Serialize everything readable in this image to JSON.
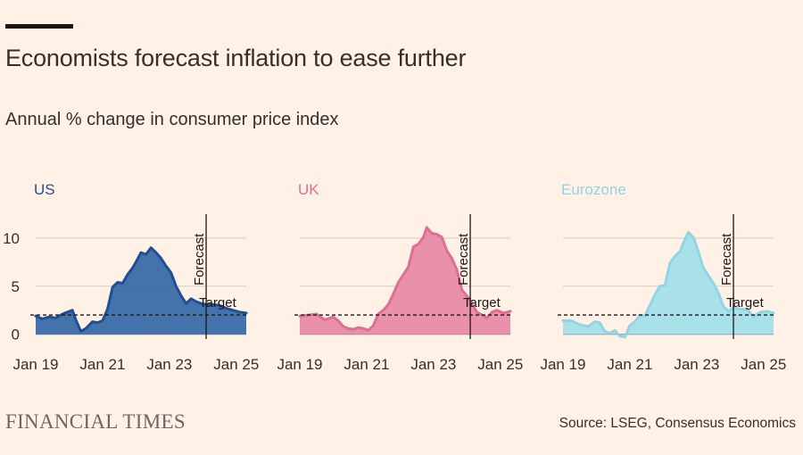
{
  "header": {
    "title": "Economists forecast inflation to ease further",
    "subtitle": "Annual % change in consumer price index"
  },
  "footer": {
    "brand": "FINANCIAL TIMES",
    "source": "Source: LSEG, Consensus Economics"
  },
  "colors": {
    "us": "#1f4f96",
    "uk": "#e06e94",
    "eurozone": "#8fd5e3"
  },
  "chart_data": [
    {
      "type": "area",
      "title": "US",
      "color": "#1f4f96",
      "fill": "#3a6aa8",
      "x_tick_labels": [
        "Jan 19",
        "Jan 21",
        "Jan 23",
        "Jan 25"
      ],
      "x_ticks": [
        2019,
        2021,
        2023,
        2025
      ],
      "xlim": [
        2019,
        2025.3
      ],
      "y_tick_labels": [
        "10",
        "5",
        "0"
      ],
      "y_ticks": [
        10,
        5,
        0
      ],
      "ylim": [
        -0.5,
        12.5
      ],
      "target": 2,
      "target_label": "Target",
      "forecast_start": 2024.1,
      "forecast_label": "Forecast",
      "series": [
        {
          "name": "US CPI",
          "x": [
            2019,
            2019.2,
            2019.4,
            2019.6,
            2019.8,
            2019.95,
            2020.1,
            2020.2,
            2020.35,
            2020.5,
            2020.7,
            2020.85,
            2021.0,
            2021.15,
            2021.3,
            2021.45,
            2021.6,
            2021.75,
            2021.9,
            2022.0,
            2022.15,
            2022.3,
            2022.45,
            2022.6,
            2022.75,
            2022.9,
            2023.05,
            2023.2,
            2023.35,
            2023.5,
            2023.65,
            2023.8,
            2023.95,
            2024.1,
            2024.3,
            2024.5,
            2024.7,
            2024.9,
            2025.1,
            2025.3
          ],
          "y": [
            1.9,
            1.6,
            1.8,
            1.7,
            2.1,
            2.3,
            2.5,
            1.5,
            0.3,
            0.6,
            1.3,
            1.2,
            1.4,
            2.6,
            4.9,
            5.4,
            5.3,
            6.2,
            6.9,
            7.5,
            8.5,
            8.3,
            9.0,
            8.5,
            7.9,
            7.1,
            6.4,
            5.0,
            4.0,
            3.2,
            3.7,
            3.4,
            3.2,
            3.1,
            3.1,
            3.0,
            2.7,
            2.5,
            2.3,
            2.2
          ]
        }
      ]
    },
    {
      "type": "area",
      "title": "UK",
      "color": "#e06e94",
      "fill": "#e88aa6",
      "x_tick_labels": [
        "Jan 19",
        "Jan 21",
        "Jan 23",
        "Jan 25"
      ],
      "x_ticks": [
        2019,
        2021,
        2023,
        2025
      ],
      "xlim": [
        2019,
        2025.3
      ],
      "y_tick_labels": [
        "10",
        "5",
        "0"
      ],
      "y_ticks": [
        10,
        5,
        0
      ],
      "ylim": [
        -0.5,
        12.5
      ],
      "target": 2,
      "target_label": "Target",
      "forecast_start": 2024.1,
      "forecast_label": "Forecast",
      "series": [
        {
          "name": "UK CPI",
          "x": [
            2019,
            2019.25,
            2019.5,
            2019.75,
            2020.0,
            2020.15,
            2020.3,
            2020.45,
            2020.6,
            2020.75,
            2020.9,
            2021.05,
            2021.2,
            2021.35,
            2021.5,
            2021.65,
            2021.8,
            2021.95,
            2022.1,
            2022.25,
            2022.4,
            2022.55,
            2022.7,
            2022.8,
            2022.95,
            2023.1,
            2023.25,
            2023.4,
            2023.55,
            2023.7,
            2023.85,
            2024.0,
            2024.15,
            2024.3,
            2024.45,
            2024.6,
            2024.75,
            2024.9,
            2025.1,
            2025.3
          ],
          "y": [
            1.9,
            2.0,
            2.1,
            1.5,
            1.8,
            1.4,
            0.8,
            0.6,
            0.5,
            0.7,
            0.6,
            0.4,
            0.9,
            2.1,
            2.5,
            3.1,
            4.2,
            5.4,
            6.2,
            7.0,
            9.1,
            9.4,
            10.1,
            11.1,
            10.5,
            10.4,
            10.1,
            8.7,
            7.9,
            6.7,
            4.6,
            4.0,
            3.2,
            2.3,
            2.0,
            1.7,
            2.3,
            2.5,
            2.2,
            2.4
          ]
        }
      ]
    },
    {
      "type": "area",
      "title": "Eurozone",
      "color": "#8fd5e3",
      "fill": "#a4dfea",
      "x_tick_labels": [
        "Jan 19",
        "Jan 21",
        "Jan 23",
        "Jan 25"
      ],
      "x_ticks": [
        2019,
        2021,
        2023,
        2025
      ],
      "xlim": [
        2019,
        2025.3
      ],
      "y_tick_labels": [
        "10",
        "5",
        "0"
      ],
      "y_ticks": [
        10,
        5,
        0
      ],
      "ylim": [
        -0.5,
        12.5
      ],
      "target": 2,
      "target_label": "Target",
      "forecast_start": 2024.1,
      "forecast_label": "Forecast",
      "series": [
        {
          "name": "Eurozone HICP",
          "x": [
            2019,
            2019.25,
            2019.5,
            2019.75,
            2019.95,
            2020.1,
            2020.25,
            2020.4,
            2020.55,
            2020.7,
            2020.85,
            2021.0,
            2021.15,
            2021.3,
            2021.45,
            2021.6,
            2021.75,
            2021.9,
            2022.05,
            2022.2,
            2022.35,
            2022.5,
            2022.65,
            2022.75,
            2022.9,
            2023.05,
            2023.2,
            2023.35,
            2023.5,
            2023.65,
            2023.8,
            2023.95,
            2024.1,
            2024.3,
            2024.5,
            2024.7,
            2024.9,
            2025.1,
            2025.3
          ],
          "y": [
            1.4,
            1.4,
            1.0,
            0.8,
            1.3,
            1.2,
            0.3,
            0.1,
            0.4,
            -0.2,
            -0.3,
            0.9,
            1.3,
            2.0,
            1.9,
            3.0,
            4.1,
            5.0,
            5.1,
            7.4,
            8.1,
            8.6,
            9.9,
            10.6,
            10.1,
            8.6,
            6.9,
            6.1,
            5.3,
            4.3,
            2.9,
            2.4,
            2.8,
            2.6,
            2.6,
            1.8,
            2.3,
            2.4,
            2.2
          ]
        }
      ]
    }
  ]
}
